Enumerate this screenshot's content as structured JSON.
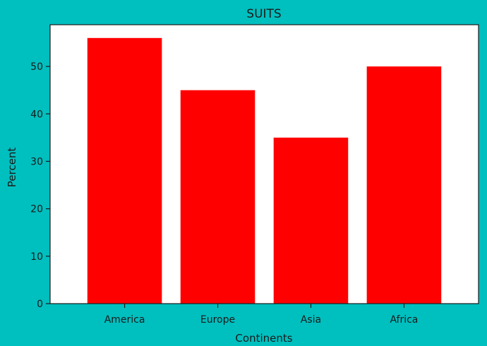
{
  "chart_data": {
    "type": "bar",
    "title": "SUITS",
    "xlabel": "Continents",
    "ylabel": "Percent",
    "categories": [
      "America",
      "Europe",
      "Asia",
      "Africa"
    ],
    "values": [
      56,
      45,
      35,
      50
    ],
    "ylim": [
      0,
      58.8
    ],
    "yticks": [
      0,
      10,
      20,
      30,
      40,
      50
    ],
    "bar_color": "#ff0000",
    "background_color": "#00bfbf",
    "plot_background": "#ffffff",
    "grid": false,
    "legend": "none"
  }
}
